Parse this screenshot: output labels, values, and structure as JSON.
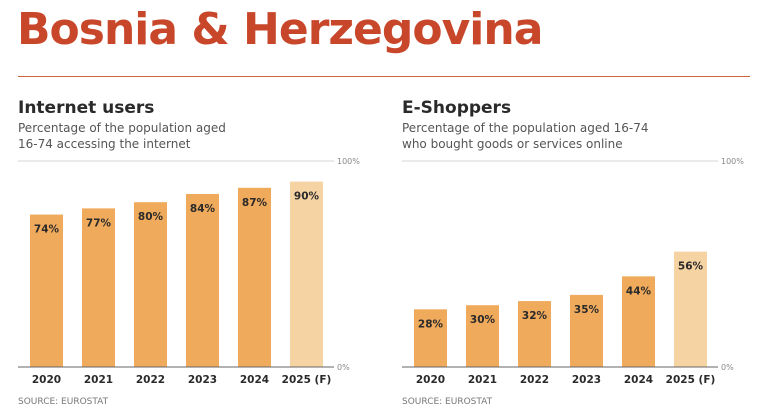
{
  "title": "Bosnia & Herzegovina",
  "chart_data": [
    {
      "type": "bar",
      "title": "Internet users",
      "subtitle_lines": [
        "Percentage of the population aged",
        "16-74 accessing the internet"
      ],
      "categories": [
        "2020",
        "2021",
        "2022",
        "2023",
        "2024",
        "2025 (F)"
      ],
      "values": [
        74,
        77,
        80,
        84,
        87,
        90
      ],
      "value_labels": [
        "74%",
        "77%",
        "80%",
        "84%",
        "87%",
        "90%"
      ],
      "forecast": [
        false,
        false,
        false,
        false,
        false,
        true
      ],
      "ylim": [
        0,
        100
      ],
      "ytick_labels": [
        "0%",
        "100%"
      ],
      "source": "SOURCE: EUROSTAT"
    },
    {
      "type": "bar",
      "title": "E-Shoppers",
      "subtitle_lines": [
        "Percentage of the population aged 16-74",
        "who bought goods or services online"
      ],
      "categories": [
        "2020",
        "2021",
        "2022",
        "2023",
        "2024",
        "2025 (F)"
      ],
      "values": [
        28,
        30,
        32,
        35,
        44,
        56
      ],
      "value_labels": [
        "28%",
        "30%",
        "32%",
        "35%",
        "44%",
        "56%"
      ],
      "forecast": [
        false,
        false,
        false,
        false,
        false,
        true
      ],
      "ylim": [
        0,
        100
      ],
      "ytick_labels": [
        "0%",
        "100%"
      ],
      "source": "SOURCE: EUROSTAT"
    }
  ],
  "colors": {
    "title": "#c8472a",
    "bar": "#f0aa5c",
    "forecast": "#f6d3a3",
    "text": "#2a2a2a"
  }
}
